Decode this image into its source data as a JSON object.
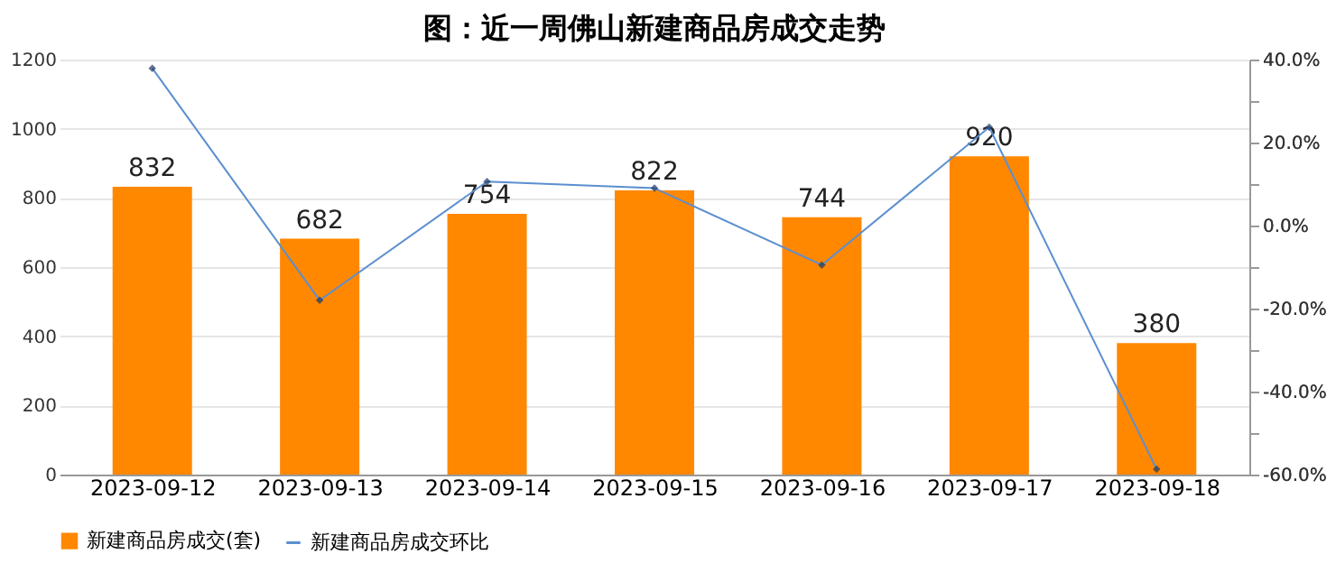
{
  "chart_data": {
    "type": "bar",
    "title": "图：近一周佛山新建商品房成交走势",
    "categories": [
      "2023-09-12",
      "2023-09-13",
      "2023-09-14",
      "2023-09-15",
      "2023-09-16",
      "2023-09-17",
      "2023-09-18"
    ],
    "series": [
      {
        "name": "新建商品房成交(套)",
        "color": "#ff8800",
        "values": [
          832,
          682,
          754,
          822,
          744,
          920,
          380
        ],
        "value_labels": [
          "832",
          "682",
          "754",
          "822",
          "744",
          "920",
          "380"
        ]
      },
      {
        "name": "新建商品房成交环比",
        "type": "line",
        "axis": "y2",
        "color": "#5b8fd0",
        "marker": "diamond",
        "values": [
          37.9,
          -18.0,
          10.6,
          9.0,
          -9.5,
          23.7,
          -58.7
        ]
      }
    ],
    "ylim": [
      0,
      1200
    ],
    "yticks": [
      0,
      200,
      400,
      600,
      800,
      1000,
      1200
    ],
    "y2lim": [
      -60,
      40
    ],
    "y2ticks": [
      {
        "value": -60,
        "label": "-60.0%"
      },
      {
        "value": -50,
        "label": null
      },
      {
        "value": -40,
        "label": "-40.0%"
      },
      {
        "value": -30,
        "label": null
      },
      {
        "value": -20,
        "label": "-20.0%"
      },
      {
        "value": -10,
        "label": null
      },
      {
        "value": 0,
        "label": "0.0%"
      },
      {
        "value": 10,
        "label": null
      },
      {
        "value": 20,
        "label": "20.0%"
      },
      {
        "value": 30,
        "label": null
      },
      {
        "value": 40,
        "label": "40.0%"
      }
    ],
    "grid": "y",
    "legend": "bottom"
  }
}
